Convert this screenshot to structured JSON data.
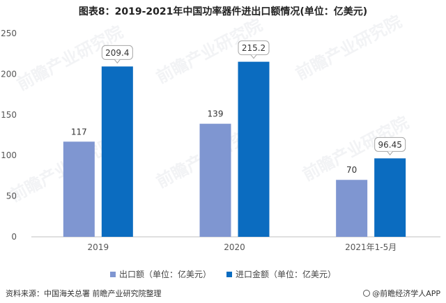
{
  "title": "图表8：2019-2021年中国功率器件进出口额情况(单位：亿美元)",
  "source": "资料来源：中国海关总署 前瞻产业研究院整理",
  "brand": "@前瞻经济学人APP",
  "watermark": "前瞻产业研究院",
  "colors": {
    "export": "#7f96d1",
    "import": "#0b6cc0",
    "axis": "#bfbfbf",
    "grid": "#e8e8e8",
    "callout_border": "#a6a6a6"
  },
  "chart_data": {
    "type": "bar",
    "categories": [
      "2019",
      "2020",
      "2021年1-5月"
    ],
    "series": [
      {
        "name": "出口额（单位：亿美元）",
        "values": [
          117,
          139,
          70
        ],
        "value_labels": [
          "117",
          "139",
          "70"
        ]
      },
      {
        "name": "进口金额（单位：亿美元）",
        "values": [
          209.4,
          215.2,
          96.45
        ],
        "value_labels": [
          "209.4",
          "215.2",
          "96.45"
        ]
      }
    ],
    "ylim": [
      0,
      250
    ],
    "yticks": [
      "0",
      "50",
      "100",
      "150",
      "200",
      "250"
    ],
    "legend_position": "bottom",
    "grid": false
  }
}
